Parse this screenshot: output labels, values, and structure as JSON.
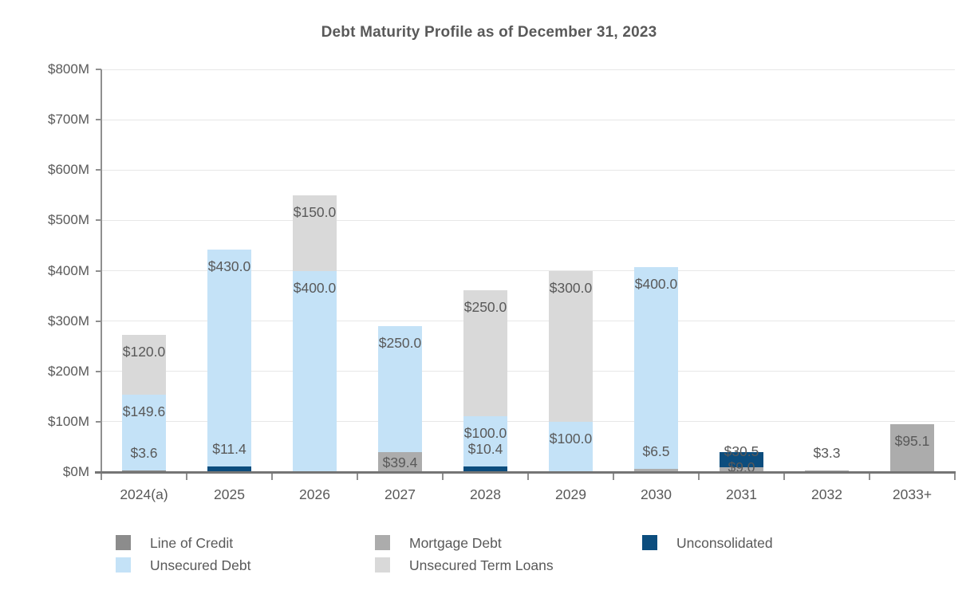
{
  "chart_data": {
    "type": "bar",
    "stacked": true,
    "title": "Debt Maturity Profile as of December 31, 2023",
    "categories": [
      "2024(a)",
      "2025",
      "2026",
      "2027",
      "2028",
      "2029",
      "2030",
      "2031",
      "2032",
      "2033+"
    ],
    "series": [
      {
        "name": "Line of Credit",
        "color": "#8C8C8C",
        "values": [
          3.6,
          0,
          0,
          0,
          0,
          0,
          0,
          0,
          0,
          0
        ]
      },
      {
        "name": "Mortgage Debt",
        "color": "#ACACAC",
        "values": [
          0,
          0,
          0,
          39.4,
          0,
          0,
          6.5,
          9.0,
          3.3,
          95.1
        ]
      },
      {
        "name": "Unconsolidated",
        "color": "#0C4D7E",
        "values": [
          0,
          11.4,
          0,
          0,
          10.4,
          0,
          0,
          30.5,
          0,
          0
        ]
      },
      {
        "name": "Unsecured Debt",
        "color": "#C4E2F7",
        "values": [
          149.6,
          430.0,
          400.0,
          250.0,
          100.0,
          100.0,
          400.0,
          0,
          0,
          0
        ]
      },
      {
        "name": "Unsecured Term Loans",
        "color": "#D9D9D9",
        "values": [
          120.0,
          0,
          150.0,
          0,
          250.0,
          300.0,
          0,
          0,
          0,
          0
        ]
      }
    ],
    "y_axis": {
      "min": 0,
      "max": 800,
      "step": 100,
      "grid": true,
      "tick_labels": [
        "$0M",
        "$100M",
        "$200M",
        "$300M",
        "$400M",
        "$500M",
        "$600M",
        "$700M",
        "$800M"
      ]
    },
    "data_labels": {
      "shown": true,
      "prefix": "$",
      "decimals": 1
    },
    "legend": {
      "position": "bottom",
      "items": [
        "Line of Credit",
        "Mortgage Debt",
        "Unconsolidated",
        "Unsecured Debt",
        "Unsecured Term Loans"
      ]
    }
  }
}
